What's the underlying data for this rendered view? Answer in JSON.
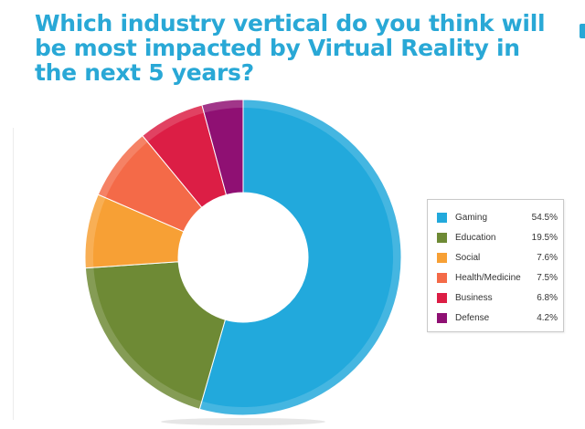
{
  "chart_data": {
    "type": "pie",
    "title": "Which industry vertical do you think will be most impacted by Virtual Reality in the next 5 years?",
    "categories": [
      "Gaming",
      "Education",
      "Social",
      "Health/Medicine",
      "Business",
      "Defense"
    ],
    "values": [
      54.5,
      19.5,
      7.6,
      7.5,
      6.8,
      4.2
    ],
    "value_labels": [
      "54.5%",
      "19.5%",
      "7.6%",
      "7.5%",
      "6.8%",
      "4.2%"
    ],
    "colors": [
      "#22a9dc",
      "#6e8a35",
      "#f7a035",
      "#f46a48",
      "#dc1e45",
      "#8f1073"
    ],
    "donut": true,
    "legend_placement": "right"
  }
}
